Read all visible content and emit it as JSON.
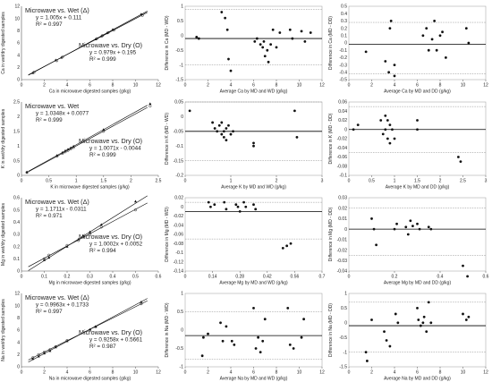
{
  "figure": {
    "background": "#ffffff",
    "point_color": "#111111",
    "line_color": "#000000",
    "bound_color": "#888888"
  },
  "chart_data": [
    {
      "type": "scatter",
      "subtype": "regression",
      "xlabel": "Ca in microwave digested samples (g/kg)",
      "ylabel": "Ca in wet/dry digested samples",
      "xlim": [
        0,
        12
      ],
      "ylim": [
        0,
        12
      ],
      "xticks": [
        "0",
        "2",
        "4",
        "6",
        "8",
        "10",
        "12"
      ],
      "yticks": [
        "0",
        "2",
        "4",
        "6",
        "8",
        "10",
        "12"
      ],
      "annotations": [
        {
          "text": "Microwave vs. Wet (Δ)",
          "bold": true
        },
        {
          "text": "y = 1.005x + 0.111"
        },
        {
          "text": "R² = 0.997"
        },
        {
          "text": "Microwave vs. Dry (O)",
          "bold": true
        },
        {
          "text": "y = 0.979x + 0.195"
        },
        {
          "text": "R² = 0.999"
        }
      ],
      "lines": [
        {
          "slope": 1.005,
          "intercept": 0.111
        },
        {
          "slope": 0.979,
          "intercept": 0.195
        }
      ],
      "series": [
        {
          "marker": "triangle",
          "x": [
            1,
            3,
            3.5,
            6.5,
            7,
            7.5,
            8,
            10.5
          ],
          "y": [
            1.1,
            3.2,
            3.6,
            6.6,
            7.1,
            7.6,
            8.2,
            10.7
          ]
        },
        {
          "marker": "circle",
          "x": [
            1.1,
            3.1,
            3.6,
            6.6,
            7.1,
            7.6,
            8.1,
            10.6
          ],
          "y": [
            1.2,
            3.1,
            3.7,
            6.7,
            7.2,
            7.7,
            8.1,
            10.5
          ]
        }
      ]
    },
    {
      "type": "scatter",
      "subtype": "bland-altman",
      "xlabel": "Average Ca by MD and WD (g/kg)",
      "ylabel": "Difference in Ca (MD - WD)",
      "xlim": [
        0,
        12
      ],
      "ylim": [
        -1.5,
        1
      ],
      "xticks": [
        "0",
        "2",
        "4",
        "6",
        "8",
        "10",
        "12"
      ],
      "yticks": [
        "1",
        "0.5",
        "0",
        "-0.5",
        "-1",
        "-1.5"
      ],
      "bias": -0.1,
      "upper": 0.9,
      "lower": -1.0,
      "points": {
        "x": [
          1,
          1.2,
          3.2,
          3.5,
          3.7,
          3.8,
          4,
          6.1,
          6.3,
          6.6,
          6.8,
          6.9,
          7,
          7.2,
          7.3,
          7.5,
          7.7,
          8,
          8.3,
          9.2,
          9.4,
          10.2,
          10.5,
          11
        ],
        "y": [
          -0.05,
          -0.1,
          0.8,
          0.6,
          0.2,
          -0.8,
          -1.2,
          -0.2,
          -0.1,
          -0.3,
          -0.4,
          -0.2,
          -0.7,
          -0.5,
          -0.9,
          -0.3,
          0.2,
          -0.4,
          0.1,
          0.2,
          -0.1,
          0.15,
          -0.2,
          0.1
        ]
      }
    },
    {
      "type": "scatter",
      "subtype": "bland-altman",
      "xlabel": "Average Ca by MD and DD (g/kg)",
      "ylabel": "Difference in Ca (MD - DD)",
      "xlim": [
        0,
        12
      ],
      "ylim": [
        -0.5,
        0.5
      ],
      "xticks": [
        "0",
        "2",
        "4",
        "6",
        "8",
        "10",
        "12"
      ],
      "yticks": [
        "0.5",
        "0.4",
        "0.3",
        "0.2",
        "0.1",
        "0",
        "-0.1",
        "-0.2",
        "-0.3",
        "-0.4",
        "-0.5"
      ],
      "bias": -0.02,
      "upper": 0.28,
      "lower": -0.42,
      "points": {
        "x": [
          1.5,
          3.2,
          3.5,
          3.6,
          3.7,
          4,
          4,
          6.5,
          6.8,
          7,
          7.3,
          7.5,
          7.7,
          8,
          8.2,
          8.5,
          10.3,
          10.5
        ],
        "y": [
          -0.12,
          -0.25,
          -0.4,
          0.2,
          0.3,
          -0.3,
          -0.45,
          0.1,
          0.2,
          -0.1,
          0.05,
          0.3,
          -0.1,
          0.1,
          0.15,
          -0.2,
          0.2,
          0.0
        ]
      }
    },
    {
      "type": "scatter",
      "subtype": "regression",
      "xlabel": "K in microwave digested samples (g/kg)",
      "ylabel": "K in wet/dry digested samples",
      "xlim": [
        0,
        2.5
      ],
      "ylim": [
        0,
        2.5
      ],
      "xticks": [
        "0",
        "0.5",
        "1",
        "1.5",
        "2",
        "2.5"
      ],
      "yticks": [
        "0",
        "0.5",
        "1",
        "1.5",
        "2",
        "2.5"
      ],
      "annotations": [
        {
          "text": "Microwave vs. Wet",
          "bold": true
        },
        {
          "text": "y = 1.0348x + 0.0077"
        },
        {
          "text": "R² = 0.999"
        },
        {
          "text": "Microwave vs. Dry (O)",
          "bold": true
        },
        {
          "text": "y = 1.0071x - 0.0044"
        },
        {
          "text": "R² = 0.999"
        }
      ],
      "lines": [
        {
          "slope": 1.0348,
          "intercept": 0.0077
        },
        {
          "slope": 1.0071,
          "intercept": -0.0044
        }
      ],
      "series": [
        {
          "marker": "triangle",
          "x": [
            0.1,
            0.65,
            0.75,
            0.8,
            0.85,
            0.9,
            0.95,
            1.5,
            2.35
          ],
          "y": [
            0.11,
            0.68,
            0.78,
            0.84,
            0.89,
            0.94,
            0.99,
            1.56,
            2.44
          ]
        },
        {
          "marker": "circle",
          "x": [
            0.1,
            0.65,
            0.75,
            0.8,
            0.85,
            0.9,
            0.95,
            1.5,
            2.35
          ],
          "y": [
            0.1,
            0.65,
            0.75,
            0.8,
            0.85,
            0.9,
            0.95,
            1.5,
            2.36
          ]
        }
      ]
    },
    {
      "type": "scatter",
      "subtype": "bland-altman",
      "xlabel": "Average K by MD and WD (g/kg)",
      "ylabel": "Difference in K (MD - WD)",
      "xlim": [
        0,
        3
      ],
      "ylim": [
        -0.2,
        0.05
      ],
      "xticks": [
        "0",
        "1",
        "2",
        "3"
      ],
      "yticks": [
        "0.05",
        "0",
        "-0.05",
        "-0.1",
        "-0.15",
        "-0.2"
      ],
      "bias": -0.05,
      "upper": 0.05,
      "lower": -0.15,
      "points": {
        "x": [
          0.1,
          0.6,
          0.65,
          0.7,
          0.75,
          0.8,
          0.8,
          0.85,
          0.85,
          0.9,
          0.9,
          0.95,
          1.0,
          1.05,
          1.5,
          1.5,
          2.4,
          2.45
        ],
        "y": [
          0.02,
          -0.02,
          -0.04,
          -0.05,
          -0.03,
          -0.06,
          -0.02,
          -0.05,
          -0.07,
          -0.04,
          -0.08,
          -0.03,
          -0.06,
          -0.05,
          -0.09,
          -0.1,
          0.02,
          -0.07
        ]
      }
    },
    {
      "type": "scatter",
      "subtype": "bland-altman",
      "xlabel": "Average K by MD and DD (g/kg)",
      "ylabel": "Difference in K (MD - DD)",
      "xlim": [
        0,
        3
      ],
      "ylim": [
        -0.1,
        0.06
      ],
      "xticks": [
        "0",
        "0.5",
        "1",
        "1.5",
        "2",
        "2.5",
        "3"
      ],
      "yticks": [
        "0.06",
        "0.04",
        "0.02",
        "0",
        "-0.02",
        "-0.04",
        "-0.06",
        "-0.08",
        "-0.1"
      ],
      "bias": 0.0,
      "upper": 0.05,
      "lower": -0.05,
      "points": {
        "x": [
          0.1,
          0.2,
          0.7,
          0.75,
          0.8,
          0.8,
          0.85,
          0.85,
          0.9,
          0.9,
          0.95,
          1.0,
          1.5,
          1.5,
          2.4,
          2.45
        ],
        "y": [
          0.0,
          0.01,
          0.02,
          -0.01,
          0.03,
          0.0,
          -0.02,
          0.02,
          -0.03,
          0.01,
          0.0,
          -0.02,
          0.02,
          0.0,
          -0.06,
          -0.07
        ]
      }
    },
    {
      "type": "scatter",
      "subtype": "regression",
      "xlabel": "Mg in microwave digested samples (g/kg)",
      "ylabel": "Mg in wet/dry digested samples",
      "xlim": [
        0,
        0.6
      ],
      "ylim": [
        0,
        0.6
      ],
      "xticks": [
        "0",
        "0.1",
        "0.2",
        "0.3",
        "0.4",
        "0.5",
        "0.6"
      ],
      "yticks": [
        "0",
        "0.1",
        "0.2",
        "0.3",
        "0.4",
        "0.5",
        "0.6"
      ],
      "annotations": [
        {
          "text": "Microwave vs. Wet (Δ)",
          "bold": true
        },
        {
          "text": "y = 1.1711x - 0.0311"
        },
        {
          "text": "R² = 0.971"
        },
        {
          "text": "Microwave vs. Dry (O)",
          "bold": true
        },
        {
          "text": "y = 1.0002x + 0.0052"
        },
        {
          "text": "R² = 0.994"
        }
      ],
      "lines": [
        {
          "slope": 1.1711,
          "intercept": -0.0311
        },
        {
          "slope": 1.0002,
          "intercept": 0.0052
        }
      ],
      "series": [
        {
          "marker": "triangle",
          "x": [
            0.1,
            0.12,
            0.2,
            0.25,
            0.27,
            0.3,
            0.35,
            0.5
          ],
          "y": [
            0.09,
            0.11,
            0.2,
            0.26,
            0.29,
            0.32,
            0.38,
            0.57
          ]
        },
        {
          "marker": "circle",
          "x": [
            0.1,
            0.12,
            0.2,
            0.25,
            0.27,
            0.3,
            0.35,
            0.5
          ],
          "y": [
            0.1,
            0.13,
            0.21,
            0.25,
            0.28,
            0.3,
            0.36,
            0.5
          ]
        }
      ]
    },
    {
      "type": "scatter",
      "subtype": "bland-altman",
      "xlabel": "Average Mg by MD and WD (g/kg)",
      "ylabel": "Difference in Mg (MD - WD)",
      "xlim": [
        0,
        0.7
      ],
      "ylim": [
        -0.14,
        0.02
      ],
      "xticks": [
        "0",
        "0.14",
        "0.28",
        "0.42",
        "0.56",
        "0.7"
      ],
      "yticks": [
        "0.02",
        "0",
        "-0.02",
        "-0.04",
        "-0.06",
        "-0.08",
        "-0.1",
        "-0.12",
        "-0.14"
      ],
      "bias": -0.01,
      "upper": 0.01,
      "lower": -0.07,
      "points": {
        "x": [
          0.12,
          0.13,
          0.15,
          0.2,
          0.21,
          0.26,
          0.27,
          0.28,
          0.3,
          0.31,
          0.35,
          0.36,
          0.5,
          0.52,
          0.54
        ],
        "y": [
          0.01,
          0.0,
          0.005,
          0.01,
          -0.005,
          0.005,
          0.0,
          -0.01,
          0.01,
          0.0,
          0.005,
          -0.005,
          -0.09,
          -0.085,
          -0.08
        ]
      }
    },
    {
      "type": "scatter",
      "subtype": "bland-altman",
      "xlabel": "Average Mg by MD and DD (g/kg)",
      "ylabel": "Difference in Mg (MD - DD)",
      "xlim": [
        0,
        0.6
      ],
      "ylim": [
        -0.04,
        0.03
      ],
      "xticks": [
        "0",
        "0.2",
        "0.4",
        "0.6"
      ],
      "yticks": [
        "0.03",
        "0.02",
        "0.01",
        "0",
        "-0.01",
        "-0.02",
        "-0.03",
        "-0.04"
      ],
      "bias": 0.0,
      "upper": 0.02,
      "lower": -0.025,
      "points": {
        "x": [
          0.1,
          0.11,
          0.12,
          0.2,
          0.21,
          0.25,
          0.26,
          0.27,
          0.28,
          0.3,
          0.31,
          0.35,
          0.36,
          0.5,
          0.52
        ],
        "y": [
          0.01,
          0.0,
          -0.015,
          0.0,
          0.005,
          0.002,
          -0.005,
          0.008,
          0.003,
          0.005,
          0.0,
          0.002,
          0.0,
          -0.035,
          -0.045
        ]
      }
    },
    {
      "type": "scatter",
      "subtype": "regression",
      "xlabel": "Na in microwave digested samples (g/kg)",
      "ylabel": "Na in wet/dry digested samples",
      "xlim": [
        0,
        12
      ],
      "ylim": [
        0,
        12
      ],
      "xticks": [
        "0",
        "2",
        "4",
        "6",
        "8",
        "10",
        "12"
      ],
      "yticks": [
        "0",
        "2",
        "4",
        "6",
        "8",
        "10",
        "12"
      ],
      "annotations": [
        {
          "text": "Microwave vs. Wet (Δ)",
          "bold": true
        },
        {
          "text": "y = 0.9963x + 0.1733"
        },
        {
          "text": "R² = 0.997"
        },
        {
          "text": "Microwave vs. Dry (O)",
          "bold": true
        },
        {
          "text": "y = 0.9258x + 0.5661"
        },
        {
          "text": "R² = 0.987"
        }
      ],
      "lines": [
        {
          "slope": 0.9963,
          "intercept": 0.1733
        },
        {
          "slope": 0.9258,
          "intercept": 0.5661
        }
      ],
      "series": [
        {
          "marker": "triangle",
          "x": [
            1,
            1.5,
            2,
            2.5,
            3,
            4,
            6,
            6.5,
            10.5
          ],
          "y": [
            1.3,
            1.7,
            2.2,
            2.6,
            3.2,
            4.2,
            6.1,
            6.6,
            10.6
          ]
        },
        {
          "marker": "circle",
          "x": [
            1,
            1.5,
            2,
            2.5,
            3,
            4,
            6,
            6.5,
            10.5
          ],
          "y": [
            1.5,
            2.0,
            2.4,
            2.8,
            3.3,
            4.3,
            6.0,
            6.5,
            10.3
          ]
        }
      ]
    },
    {
      "type": "scatter",
      "subtype": "bland-altman",
      "xlabel": "Average Na by MD and WD (g/kg)",
      "ylabel": "Difference in Na (MD - WD)",
      "xlim": [
        0,
        12
      ],
      "ylim": [
        -1,
        1
      ],
      "xticks": [
        "0",
        "2",
        "4",
        "6",
        "8",
        "10",
        "12"
      ],
      "yticks": [
        "1",
        "0.5",
        "0",
        "-0.5",
        "-1"
      ],
      "bias": -0.15,
      "upper": 0.5,
      "lower": -0.8,
      "points": {
        "x": [
          1.5,
          1.6,
          2,
          3.1,
          3.3,
          3.6,
          4.1,
          4.3,
          6,
          6.2,
          6.4,
          6.6,
          6.8,
          7,
          9,
          9.2,
          9.5,
          10.2,
          10.4
        ],
        "y": [
          -0.7,
          -0.2,
          -0.1,
          0.2,
          -0.3,
          0.1,
          -0.3,
          -0.4,
          0.6,
          -0.5,
          -0.2,
          -0.6,
          -0.3,
          0.3,
          0.6,
          -0.4,
          -0.5,
          -0.2,
          0.3
        ]
      }
    },
    {
      "type": "scatter",
      "subtype": "bland-altman",
      "xlabel": "Average Na by MD and DD (g/kg)",
      "ylabel": "Difference in Na (MD - DD)",
      "xlim": [
        0,
        12
      ],
      "ylim": [
        -1.5,
        1
      ],
      "xticks": [
        "0",
        "2",
        "4",
        "6",
        "8",
        "10",
        "12"
      ],
      "yticks": [
        "1",
        "0.5",
        "0",
        "-0.5",
        "-1",
        "-1.5"
      ],
      "bias": -0.1,
      "upper": 0.7,
      "lower": -1.0,
      "points": {
        "x": [
          1.5,
          1.6,
          2,
          3.1,
          3.3,
          3.6,
          4.1,
          4.3,
          6,
          6.1,
          6.3,
          6.5,
          6.6,
          6.8,
          7,
          7.2,
          10,
          10.3,
          10.5
        ],
        "y": [
          -1.0,
          -1.3,
          0.1,
          -0.3,
          -0.6,
          -0.8,
          0.3,
          0.0,
          0.5,
          0.1,
          -0.1,
          0.0,
          0.2,
          -0.3,
          0.7,
          0.0,
          0.3,
          0.1,
          0.2
        ]
      }
    }
  ]
}
